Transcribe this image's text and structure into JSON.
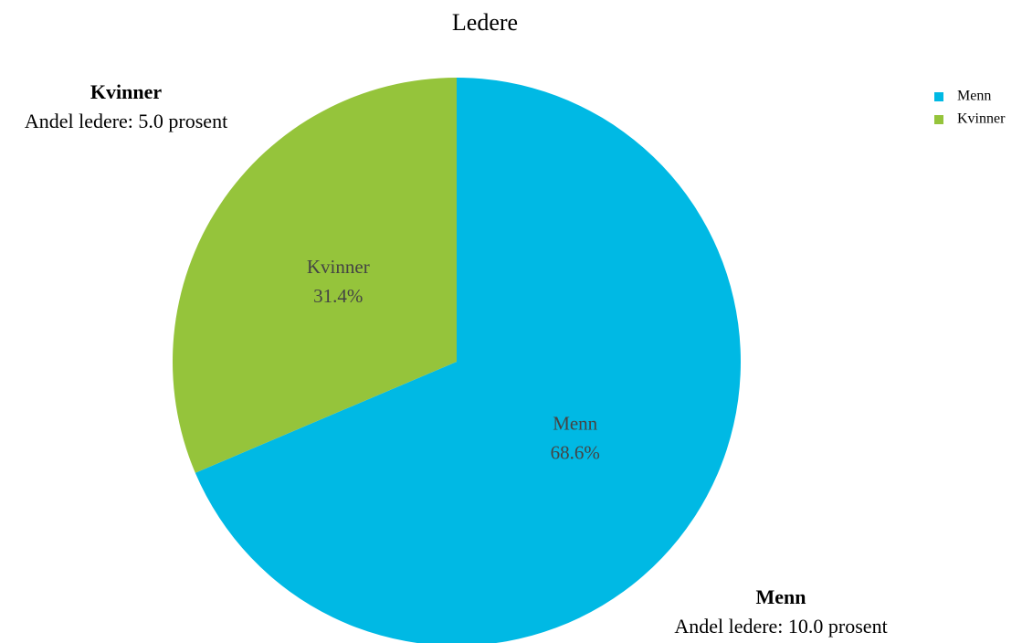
{
  "chart_data": {
    "type": "pie",
    "title": "Ledere",
    "categories": [
      "Menn",
      "Kvinner"
    ],
    "values": [
      68.6,
      31.4
    ],
    "value_labels": [
      "68.6%",
      "31.4%"
    ],
    "colors": [
      "#00b9e4",
      "#95c43b"
    ],
    "legend": "top-right",
    "annotations": [
      {
        "title": "Kvinner",
        "text": "Andel ledere: 5.0 prosent"
      },
      {
        "title": "Menn",
        "text": "Andel ledere: 10.0 prosent"
      }
    ]
  }
}
